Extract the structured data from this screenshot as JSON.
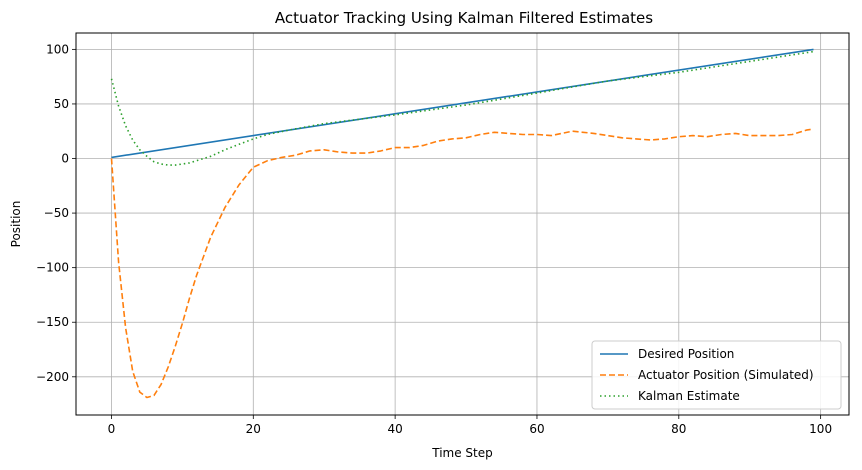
{
  "chart_data": {
    "type": "line",
    "title": "Actuator Tracking Using Kalman Filtered Estimates",
    "xlabel": "Time Step",
    "ylabel": "Position",
    "xlim": [
      -5,
      104
    ],
    "ylim": [
      -235,
      115
    ],
    "xticks": [
      0,
      20,
      40,
      60,
      80,
      100
    ],
    "yticks": [
      100,
      50,
      0,
      -50,
      -100,
      -150,
      -200
    ],
    "grid": true,
    "legend_position": "lower-right",
    "series": [
      {
        "name": "Desired Position",
        "color": "#1f77b4",
        "style": "solid",
        "x": [
          0,
          99
        ],
        "y": [
          1,
          100
        ]
      },
      {
        "name": "Actuator Position (Simulated)",
        "color": "#ff7f0e",
        "style": "dashed",
        "x": [
          0,
          1,
          2,
          3,
          4,
          5,
          6,
          7,
          8,
          9,
          10,
          11,
          12,
          14,
          16,
          18,
          20,
          22,
          24,
          26,
          28,
          30,
          32,
          34,
          36,
          38,
          40,
          42,
          44,
          46,
          48,
          50,
          52,
          54,
          56,
          58,
          60,
          62,
          65,
          68,
          70,
          72,
          74,
          76,
          78,
          80,
          82,
          84,
          86,
          88,
          90,
          92,
          94,
          96,
          98,
          99
        ],
        "y": [
          0,
          -95,
          -155,
          -195,
          -214,
          -219,
          -217,
          -207,
          -191,
          -172,
          -151,
          -128,
          -107,
          -72,
          -45,
          -24,
          -8,
          -2,
          1,
          3,
          7,
          8,
          6,
          5,
          5,
          7,
          10,
          10,
          12,
          16,
          18,
          19,
          22,
          24,
          23,
          22,
          22,
          21,
          25,
          23,
          21,
          19,
          18,
          17,
          18,
          20,
          21,
          20,
          22,
          23,
          21,
          21,
          21,
          22,
          26,
          27
        ]
      },
      {
        "name": "Kalman Estimate",
        "color": "#2ca02c",
        "style": "dotted",
        "x": [
          0,
          1,
          2,
          3,
          4,
          5,
          6,
          7,
          8,
          9,
          10,
          11,
          12,
          14,
          16,
          18,
          20,
          22,
          25,
          30,
          35,
          40,
          50,
          60,
          70,
          80,
          90,
          99
        ],
        "y": [
          73,
          48,
          30,
          17,
          8,
          2,
          -3,
          -5,
          -6,
          -6,
          -5,
          -4,
          -2,
          2,
          8,
          13,
          18,
          22,
          26,
          32,
          36,
          40,
          49,
          60,
          71,
          79,
          89,
          98
        ]
      }
    ]
  }
}
